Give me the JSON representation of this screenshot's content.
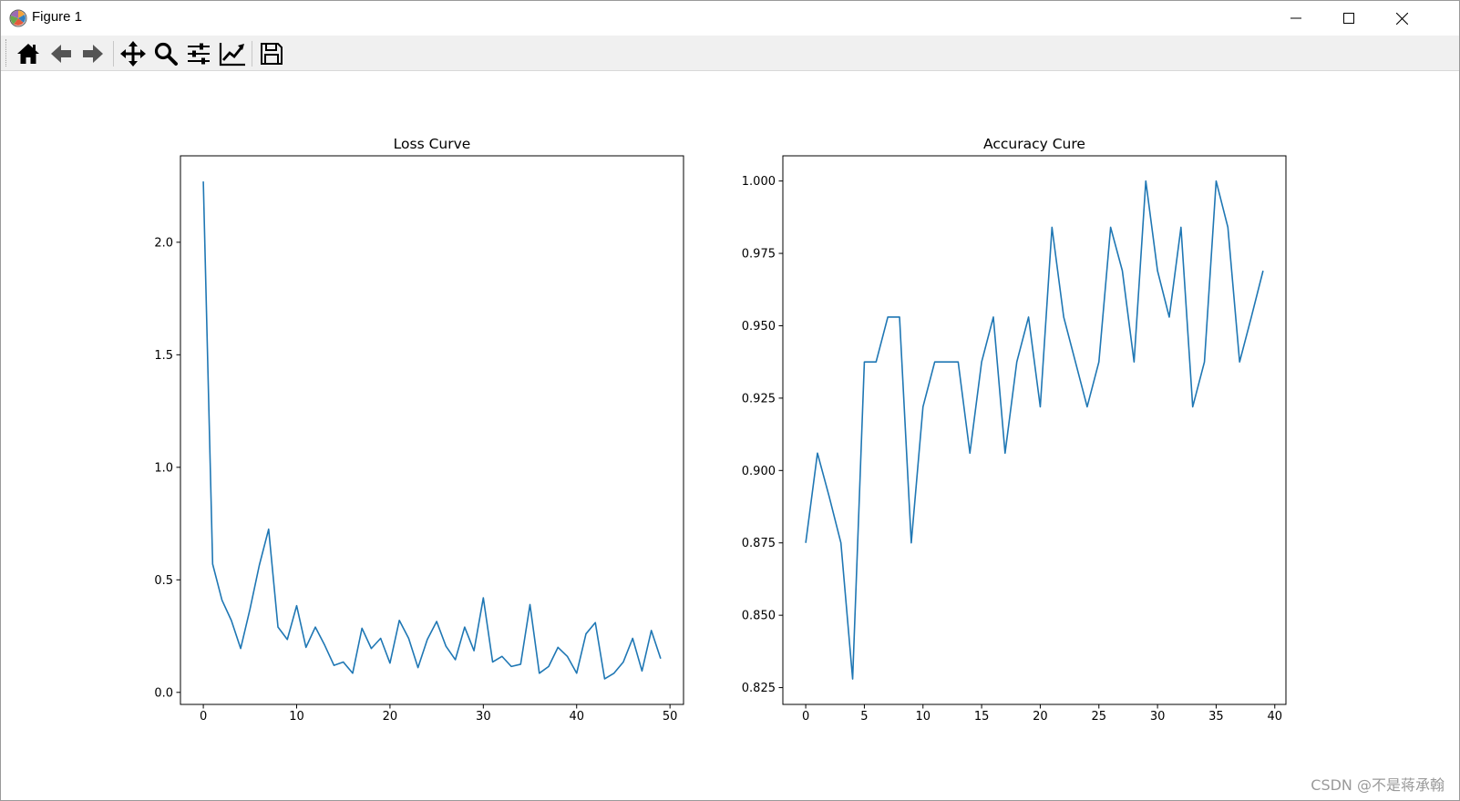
{
  "window": {
    "title": "Figure 1",
    "controls": [
      "minimize-icon",
      "maximize-icon",
      "close-icon"
    ]
  },
  "toolbar": {
    "tools": [
      {
        "name": "home-icon",
        "tooltip": "Reset original view"
      },
      {
        "name": "back-arrow-icon",
        "tooltip": "Back"
      },
      {
        "name": "forward-arrow-icon",
        "tooltip": "Forward"
      },
      {
        "name": "pan-move-icon",
        "tooltip": "Pan"
      },
      {
        "name": "zoom-magnifier-icon",
        "tooltip": "Zoom"
      },
      {
        "name": "subplots-sliders-icon",
        "tooltip": "Configure subplots"
      },
      {
        "name": "edit-axes-icon",
        "tooltip": "Edit axis"
      },
      {
        "name": "save-floppy-icon",
        "tooltip": "Save"
      }
    ]
  },
  "colors": {
    "line": "#1f77b4",
    "toolbar_bg": "#f0f0f0",
    "watermark": "#9a9a9a"
  },
  "chart_data": [
    {
      "type": "line",
      "title": "Loss Curve",
      "xlabel": "",
      "ylabel": "",
      "xlim": [
        -2.45,
        51.45
      ],
      "ylim": [
        -0.0535,
        2.384
      ],
      "xticks": [
        0,
        10,
        20,
        30,
        40,
        50
      ],
      "yticks": [
        0.0,
        0.5,
        1.0,
        1.5,
        2.0
      ],
      "xtick_labels": [
        "0",
        "10",
        "20",
        "30",
        "40",
        "50"
      ],
      "ytick_labels": [
        "0.0",
        "0.5",
        "1.0",
        "1.5",
        "2.0"
      ],
      "grid": false,
      "series": [
        {
          "x": [
            0,
            1,
            2,
            3,
            4,
            5,
            6,
            7,
            8,
            9,
            10,
            11,
            12,
            13,
            14,
            15,
            16,
            17,
            18,
            19,
            20,
            21,
            22,
            23,
            24,
            25,
            26,
            27,
            28,
            29,
            30,
            31,
            32,
            33,
            34,
            35,
            36,
            37,
            38,
            39,
            40,
            41,
            42,
            43,
            44,
            45,
            46,
            47,
            48,
            49
          ],
          "values": [
            2.27,
            0.57,
            0.41,
            0.32,
            0.195,
            0.37,
            0.565,
            0.725,
            0.29,
            0.235,
            0.385,
            0.2,
            0.29,
            0.21,
            0.12,
            0.135,
            0.085,
            0.285,
            0.195,
            0.24,
            0.13,
            0.32,
            0.24,
            0.11,
            0.235,
            0.315,
            0.205,
            0.145,
            0.29,
            0.185,
            0.42,
            0.135,
            0.16,
            0.115,
            0.125,
            0.39,
            0.085,
            0.115,
            0.2,
            0.16,
            0.085,
            0.26,
            0.31,
            0.06,
            0.085,
            0.135,
            0.24,
            0.095,
            0.275,
            0.15
          ]
        }
      ]
    },
    {
      "type": "line",
      "title": "Accuracy Cure",
      "xlabel": "",
      "ylabel": "",
      "xlim": [
        -1.95,
        40.95
      ],
      "ylim": [
        0.8192,
        1.0087
      ],
      "xticks": [
        0,
        5,
        10,
        15,
        20,
        25,
        30,
        35,
        40
      ],
      "yticks": [
        0.825,
        0.85,
        0.875,
        0.9,
        0.925,
        0.95,
        0.975,
        1.0
      ],
      "xtick_labels": [
        "0",
        "5",
        "10",
        "15",
        "20",
        "25",
        "30",
        "35",
        "40"
      ],
      "ytick_labels": [
        "0.825",
        "0.850",
        "0.875",
        "0.900",
        "0.925",
        "0.950",
        "0.975",
        "1.000"
      ],
      "grid": false,
      "series": [
        {
          "x": [
            0,
            1,
            2,
            3,
            4,
            5,
            6,
            7,
            8,
            9,
            10,
            11,
            12,
            13,
            14,
            15,
            16,
            17,
            18,
            19,
            20,
            21,
            22,
            23,
            24,
            25,
            26,
            27,
            28,
            29,
            30,
            31,
            32,
            33,
            34,
            35,
            36,
            37,
            38,
            39
          ],
          "values": [
            0.875,
            0.906,
            0.891,
            0.875,
            0.828,
            0.9375,
            0.9375,
            0.953,
            0.953,
            0.875,
            0.922,
            0.9375,
            0.9375,
            0.9375,
            0.906,
            0.9375,
            0.953,
            0.906,
            0.9375,
            0.953,
            0.922,
            0.984,
            0.953,
            0.9375,
            0.922,
            0.9375,
            0.984,
            0.969,
            0.9375,
            1.0,
            0.969,
            0.953,
            0.984,
            0.922,
            0.9375,
            1.0,
            0.984,
            0.9375,
            0.953,
            0.969
          ]
        }
      ]
    }
  ],
  "watermark": "CSDN @不是蒋承翰"
}
